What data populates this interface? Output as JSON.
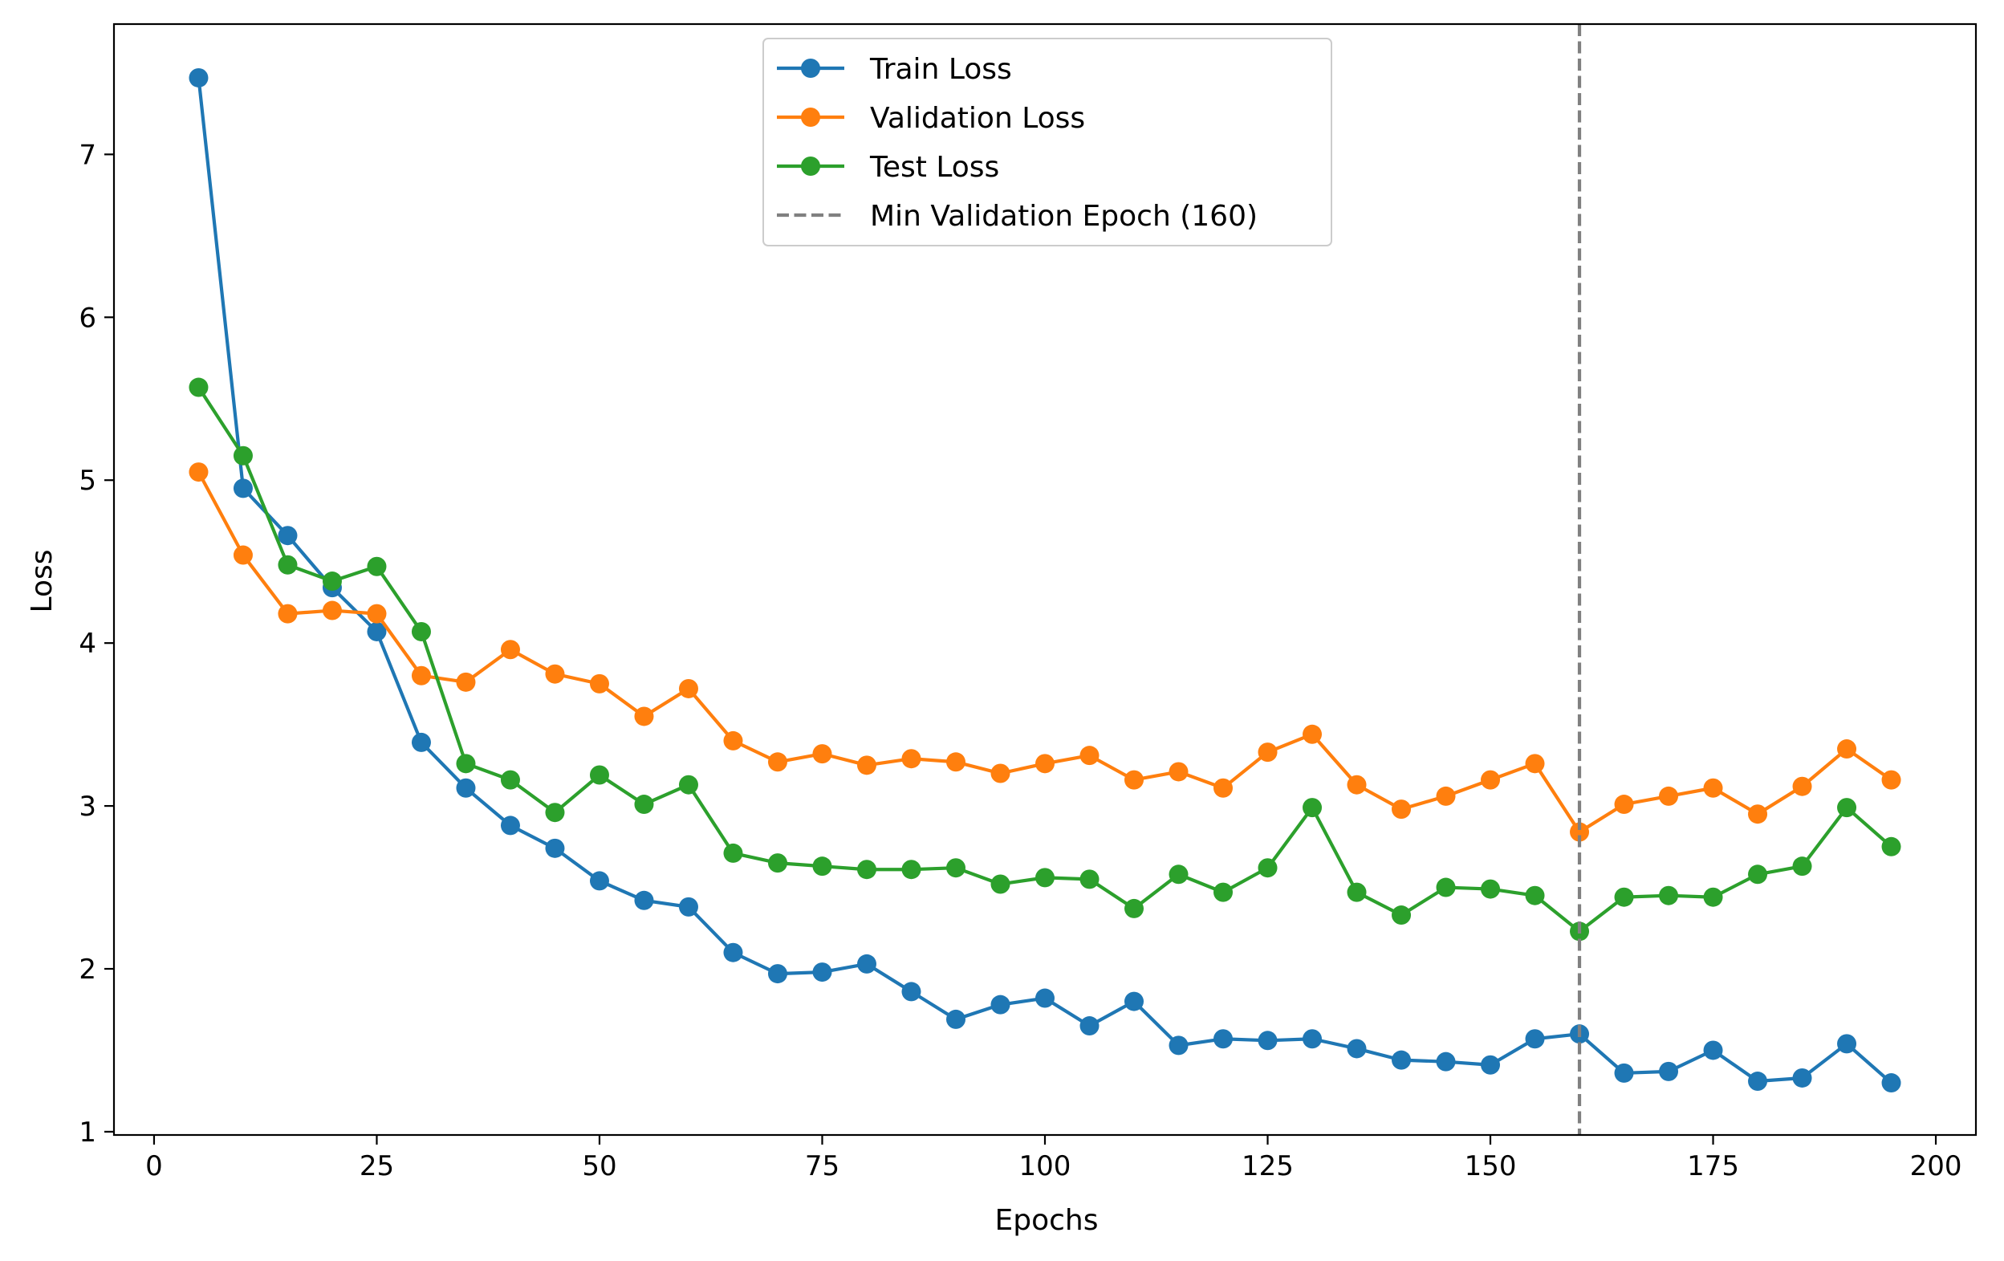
{
  "chart_data": {
    "type": "line",
    "xlabel": "Epochs",
    "ylabel": "Loss",
    "xlim": [
      -4.5,
      204.5
    ],
    "ylim": [
      0.98,
      7.8
    ],
    "xticks": [
      0,
      25,
      50,
      75,
      100,
      125,
      150,
      175,
      200
    ],
    "yticks": [
      1,
      2,
      3,
      4,
      5,
      6,
      7
    ],
    "grid": false,
    "legend_position": "top-center",
    "x": [
      5,
      10,
      15,
      20,
      25,
      30,
      35,
      40,
      45,
      50,
      55,
      60,
      65,
      70,
      75,
      80,
      85,
      90,
      95,
      100,
      105,
      110,
      115,
      120,
      125,
      130,
      135,
      140,
      145,
      150,
      155,
      160,
      165,
      170,
      175,
      180,
      185,
      190,
      195
    ],
    "series": [
      {
        "name": "Train Loss",
        "color": "#1f77b4",
        "values": [
          7.47,
          4.95,
          4.66,
          4.34,
          4.07,
          3.39,
          3.11,
          2.88,
          2.74,
          2.54,
          2.42,
          2.38,
          2.1,
          1.97,
          1.98,
          2.03,
          1.86,
          1.69,
          1.78,
          1.82,
          1.65,
          1.8,
          1.53,
          1.57,
          1.56,
          1.57,
          1.51,
          1.44,
          1.43,
          1.41,
          1.57,
          1.6,
          1.36,
          1.37,
          1.5,
          1.31,
          1.33,
          1.54,
          1.3
        ]
      },
      {
        "name": "Validation Loss",
        "color": "#ff7f0e",
        "values": [
          5.05,
          4.54,
          4.18,
          4.2,
          4.18,
          3.8,
          3.76,
          3.96,
          3.81,
          3.75,
          3.55,
          3.72,
          3.4,
          3.27,
          3.32,
          3.25,
          3.29,
          3.27,
          3.2,
          3.26,
          3.31,
          3.16,
          3.21,
          3.11,
          3.33,
          3.44,
          3.13,
          2.98,
          3.06,
          3.16,
          3.26,
          2.84,
          3.01,
          3.06,
          3.11,
          2.95,
          3.12,
          3.35,
          3.16
        ]
      },
      {
        "name": "Test Loss",
        "color": "#2ca02c",
        "values": [
          5.57,
          5.15,
          4.48,
          4.38,
          4.47,
          4.07,
          3.26,
          3.16,
          2.96,
          3.19,
          3.01,
          3.13,
          2.71,
          2.65,
          2.63,
          2.61,
          2.61,
          2.62,
          2.52,
          2.56,
          2.55,
          2.37,
          2.58,
          2.47,
          2.62,
          2.99,
          2.47,
          2.33,
          2.5,
          2.49,
          2.45,
          2.23,
          2.44,
          2.45,
          2.44,
          2.58,
          2.63,
          2.99,
          2.75
        ]
      }
    ],
    "vline": {
      "x": 160,
      "name": "Min Validation Epoch (160)",
      "color": "#808080"
    }
  }
}
